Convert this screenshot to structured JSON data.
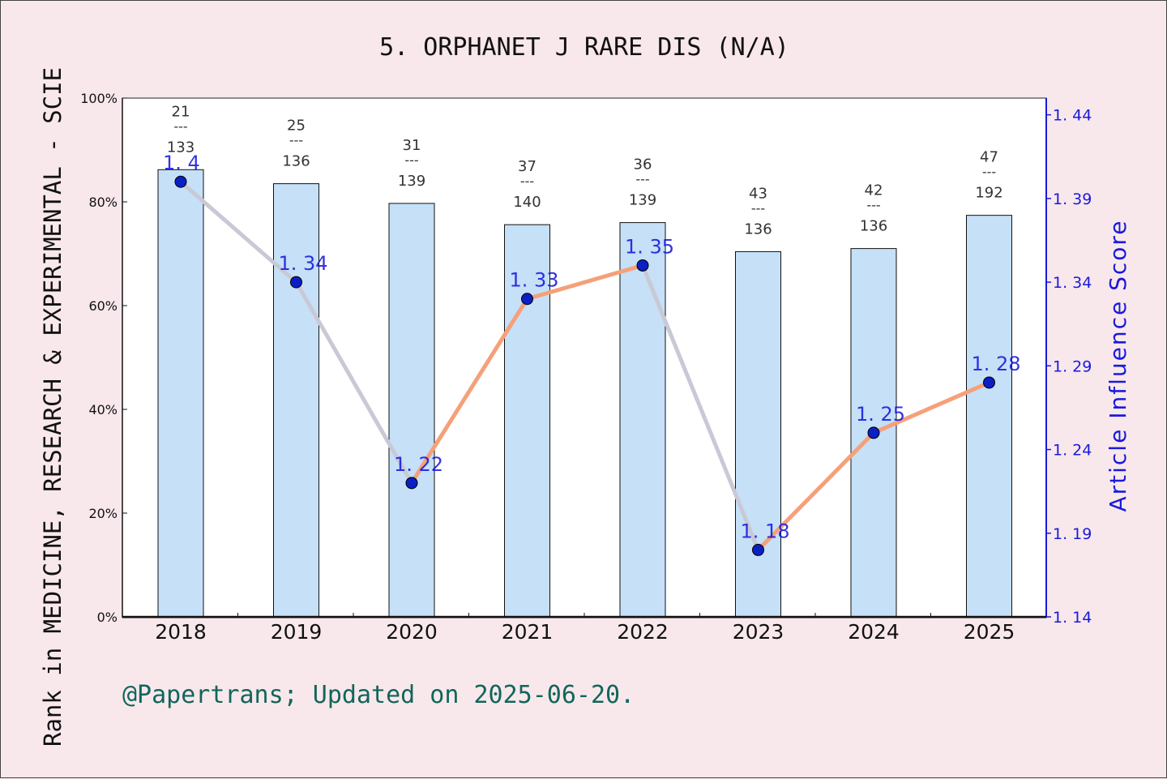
{
  "chart_data": {
    "type": "bar",
    "title": "5. ORPHANET J RARE DIS (N/A)",
    "ylabel_left": "Rank in MEDICINE, RESEARCH & EXPERIMENTAL - SCIE",
    "ylabel_right": "Article Influence Score",
    "footer": "@Papertrans; Updated on 2025-06-20.",
    "categories": [
      "2018",
      "2019",
      "2020",
      "2021",
      "2022",
      "2023",
      "2024",
      "2025"
    ],
    "left_axis": {
      "min": 0,
      "max": 100,
      "ticks": [
        0,
        20,
        40,
        60,
        80,
        100
      ],
      "tick_labels": [
        "0%",
        "20%",
        "40%",
        "60%",
        "80%",
        "100%"
      ]
    },
    "right_axis": {
      "min": 1.14,
      "max": 1.45,
      "ticks": [
        1.14,
        1.19,
        1.24,
        1.29,
        1.34,
        1.39,
        1.44
      ],
      "tick_labels": [
        "1. 14",
        "1. 19",
        "1. 24",
        "1. 29",
        "1. 34",
        "1. 39",
        "1. 44"
      ]
    },
    "bars": {
      "values": [
        86.2,
        83.5,
        79.7,
        75.6,
        76.0,
        70.4,
        71.0,
        77.4
      ],
      "rank": [
        "21",
        "25",
        "31",
        "37",
        "36",
        "43",
        "42",
        "47"
      ],
      "total": [
        "133",
        "136",
        "139",
        "140",
        "139",
        "136",
        "136",
        "192"
      ],
      "fraction_bar": "---",
      "color": "#c5e0f7"
    },
    "line": {
      "values": [
        1.4,
        1.34,
        1.22,
        1.33,
        1.35,
        1.18,
        1.25,
        1.28
      ],
      "labels": [
        "1. 4",
        "1. 34",
        "1. 22",
        "1. 33",
        "1. 35",
        "1. 18",
        "1. 25",
        "1. 28"
      ],
      "marker_color": "#0a1fc4",
      "up_color": "#f5a07a",
      "down_color": "#c9c9d6",
      "label_color": "#1111dd"
    },
    "colors": {
      "background": "#f8e8ec",
      "plot_background": "#ffffff",
      "right_axis": "#1a1adb",
      "footer": "#11665a"
    }
  }
}
